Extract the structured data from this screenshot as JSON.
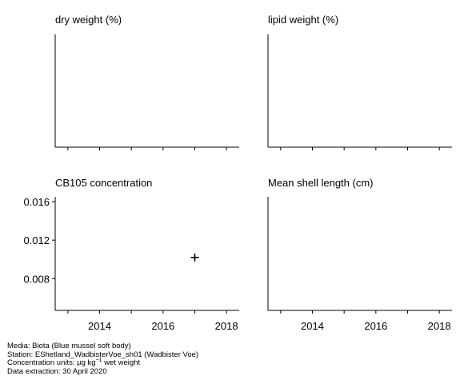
{
  "chart_data": [
    {
      "type": "scatter",
      "title": "dry weight (%)",
      "xlim": [
        2012.6,
        2018.4
      ],
      "x_ticks": [
        2013,
        2014,
        2015,
        2016,
        2017,
        2018
      ],
      "x_tick_labels": [],
      "y_ticks": [],
      "points": []
    },
    {
      "type": "scatter",
      "title": "lipid weight (%)",
      "xlim": [
        2012.6,
        2018.4
      ],
      "x_ticks": [
        2013,
        2014,
        2015,
        2016,
        2017,
        2018
      ],
      "x_tick_labels": [],
      "y_ticks": [],
      "points": []
    },
    {
      "type": "scatter",
      "title": "CB105 concentration",
      "xlim": [
        2012.6,
        2018.4
      ],
      "ylim": [
        0.0047,
        0.0165
      ],
      "x_ticks": [
        2013,
        2014,
        2015,
        2016,
        2017,
        2018
      ],
      "x_tick_labels": [
        "2014",
        "2016",
        "2018"
      ],
      "y_ticks": [
        0.008,
        0.012,
        0.016
      ],
      "y_tick_labels": [
        "0.008",
        "0.012",
        "0.016"
      ],
      "marker": "+",
      "points": [
        {
          "x": 2017,
          "y": 0.0102
        }
      ]
    },
    {
      "type": "scatter",
      "title": "Mean shell length (cm)",
      "xlim": [
        2012.6,
        2018.4
      ],
      "x_ticks": [
        2013,
        2014,
        2015,
        2016,
        2017,
        2018
      ],
      "x_tick_labels": [
        "2014",
        "2016",
        "2018"
      ],
      "y_ticks": [],
      "points": []
    }
  ],
  "footer": {
    "media": "Media: Biota (Blue mussel soft body)",
    "station": "Station: EShetland_WadbisterVoe_sh01 (Wadbister Voe)",
    "units_prefix": "Concentration units:  µg kg",
    "units_sup": "−1",
    "units_suffix": " wet weight",
    "extraction": "Data extraction: 30 April 2020"
  }
}
